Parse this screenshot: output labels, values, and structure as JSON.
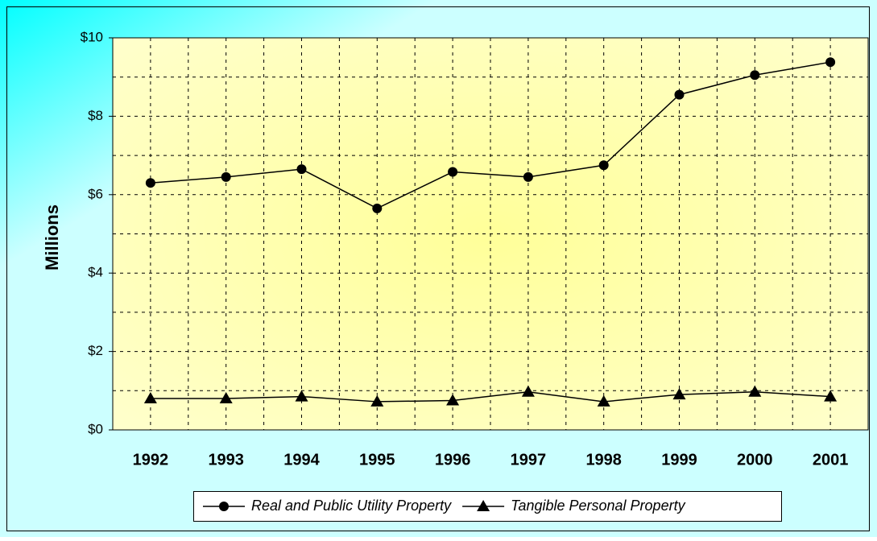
{
  "chart_data": {
    "type": "line",
    "y_label": "Millions",
    "categories": [
      "1992",
      "1993",
      "1994",
      "1995",
      "1996",
      "1997",
      "1998",
      "1999",
      "2000",
      "2001"
    ],
    "series": [
      {
        "name": "Real and Public Utility Property",
        "color": "#000000",
        "marker": "circle",
        "values": [
          6.3,
          6.45,
          6.65,
          5.65,
          6.58,
          6.45,
          6.75,
          8.55,
          9.05,
          9.38
        ]
      },
      {
        "name": "Tangible Personal Property",
        "color": "#000000",
        "marker": "triangle",
        "values": [
          0.8,
          0.8,
          0.85,
          0.72,
          0.75,
          0.97,
          0.72,
          0.9,
          0.97,
          0.85
        ]
      }
    ],
    "ylim": [
      0,
      10
    ],
    "yticks": [
      {
        "value": 0,
        "label": "$0"
      },
      {
        "value": 2,
        "label": "$2"
      },
      {
        "value": 4,
        "label": "$4"
      },
      {
        "value": 6,
        "label": "$6"
      },
      {
        "value": 8,
        "label": "$8"
      },
      {
        "value": 10,
        "label": "$10"
      }
    ],
    "y_minor_ticks": [
      1,
      3,
      5,
      7,
      9
    ],
    "grid": true,
    "legend": "bottom"
  }
}
